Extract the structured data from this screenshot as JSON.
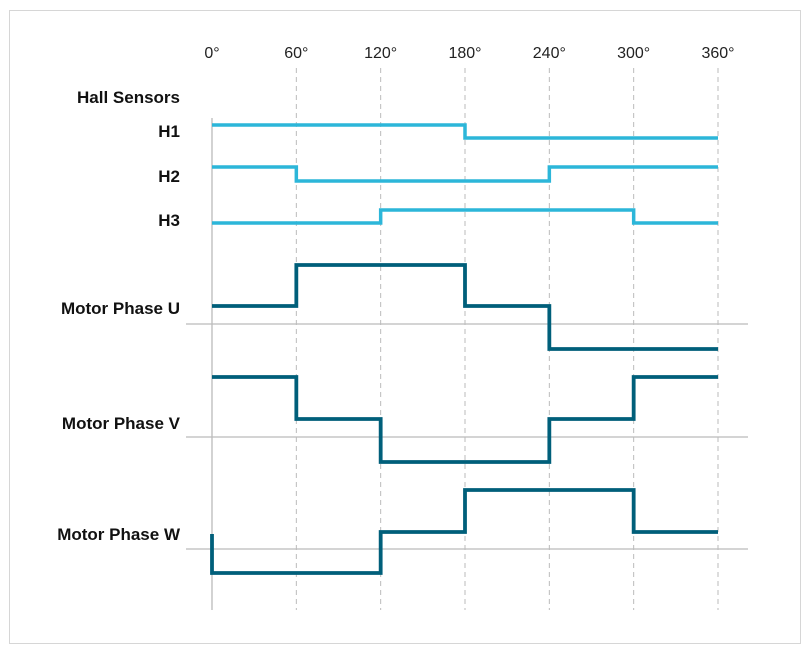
{
  "colors": {
    "hall": "#2cb6d9",
    "phase": "#005f7a",
    "grid": "#bbbbbb",
    "frame": "#d6d6d6"
  },
  "axis": {
    "angle_labels": [
      "0°",
      "60°",
      "120°",
      "180°",
      "240°",
      "300°",
      "360°"
    ]
  },
  "labels": {
    "hall_sensors": "Hall Sensors",
    "h1": "H1",
    "h2": "H2",
    "h3": "H3",
    "phase_u": "Motor Phase U",
    "phase_v": "Motor Phase V",
    "phase_w": "Motor Phase W"
  },
  "chart_data": {
    "type": "timing-diagram",
    "x_unit": "degrees",
    "x_range": [
      0,
      360
    ],
    "x_ticks": [
      0,
      60,
      120,
      180,
      240,
      300,
      360
    ],
    "hall_signals": [
      {
        "name": "H1",
        "levels": [
          1,
          1,
          1,
          0,
          0,
          0
        ]
      },
      {
        "name": "H2",
        "levels": [
          1,
          0,
          0,
          0,
          1,
          1
        ]
      },
      {
        "name": "H3",
        "levels": [
          0,
          0,
          1,
          1,
          1,
          0
        ]
      }
    ],
    "phase_signals": [
      {
        "name": "Motor Phase U",
        "levels": [
          0,
          1,
          1,
          0,
          -1,
          -1
        ]
      },
      {
        "name": "Motor Phase V",
        "levels": [
          1,
          0,
          -1,
          -1,
          0,
          1
        ]
      },
      {
        "name": "Motor Phase W",
        "levels": [
          -1,
          -1,
          0,
          1,
          1,
          0
        ]
      }
    ]
  }
}
